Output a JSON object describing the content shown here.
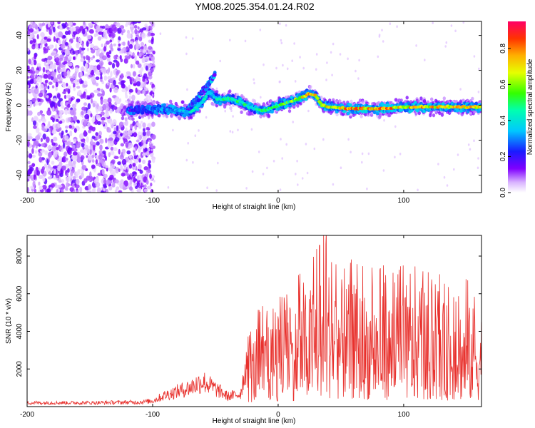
{
  "title": "YM08.2025.354.01.24.R02",
  "chart_data": [
    {
      "type": "heatmap",
      "name": "spectrogram",
      "xlabel": "Height of straight line (km)",
      "ylabel": "Frequency (Hz)",
      "xlim": [
        -200,
        162
      ],
      "ylim": [
        -50,
        48
      ],
      "xticks": [
        -200,
        -100,
        0,
        100
      ],
      "yticks": [
        -40,
        -20,
        0,
        20,
        40
      ],
      "colorbar": {
        "label": "Normalized spectral amplitude",
        "range": [
          0,
          0.95
        ],
        "ticks": [
          0.0,
          0.2,
          0.4,
          0.6,
          0.8
        ]
      },
      "ridge": {
        "description_points_x": [
          -120,
          -100,
          -80,
          -70,
          -60,
          -55,
          -50,
          -45,
          -40,
          -30,
          -20,
          -10,
          0,
          10,
          20,
          25,
          30,
          35,
          40,
          60,
          80,
          100,
          120,
          140,
          160
        ],
        "frequency_hz": [
          -3,
          -2,
          -3,
          -4,
          2,
          8,
          4,
          3,
          4,
          2,
          -2,
          -3,
          0,
          2,
          5,
          7,
          5,
          0,
          -1,
          -2,
          -2,
          -1,
          -1,
          -1,
          -1
        ],
        "peak_amplitude": [
          0.2,
          0.35,
          0.4,
          0.45,
          0.5,
          0.4,
          0.5,
          0.55,
          0.6,
          0.55,
          0.5,
          0.55,
          0.6,
          0.65,
          0.8,
          0.85,
          0.85,
          0.8,
          0.85,
          0.9,
          0.9,
          0.85,
          0.85,
          0.85,
          0.85
        ]
      },
      "noise_region_x": [
        -200,
        -105
      ],
      "branch": {
        "x": [
          -75,
          -60,
          -50
        ],
        "frequency_hz": [
          -5,
          8,
          18
        ]
      }
    },
    {
      "type": "line",
      "name": "snr",
      "xlabel": "Height of straight line (km)",
      "ylabel": "SNR (10 * v/v)",
      "xlim": [
        -200,
        162
      ],
      "ylim": [
        0,
        9100
      ],
      "xticks": [
        -200,
        -100,
        0,
        100
      ],
      "yticks": [
        2000,
        4000,
        6000,
        8000
      ],
      "color": "#e8302c",
      "envelope": {
        "x": [
          -200,
          -150,
          -110,
          -100,
          -90,
          -80,
          -70,
          -60,
          -50,
          -40,
          -30,
          -25,
          -20,
          -10,
          0,
          10,
          20,
          30,
          40,
          50,
          60,
          80,
          100,
          120,
          140,
          160
        ],
        "typical_max": [
          300,
          300,
          350,
          450,
          900,
          1200,
          1500,
          2000,
          1400,
          800,
          1000,
          3500,
          4500,
          5000,
          5500,
          6000,
          7000,
          8000,
          8800,
          8000,
          7500,
          7000,
          7000,
          6500,
          6500,
          6200
        ]
      }
    }
  ]
}
